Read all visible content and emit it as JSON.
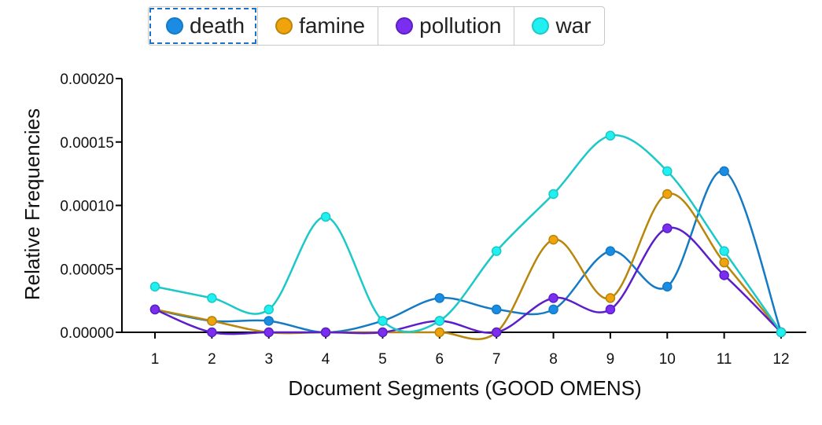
{
  "chart_data": {
    "type": "line",
    "xlabel": "Document Segments (GOOD OMENS)",
    "ylabel": "Relative Frequencies",
    "x": [
      1,
      2,
      3,
      4,
      5,
      6,
      7,
      8,
      9,
      10,
      11,
      12
    ],
    "ylim": [
      0,
      0.0002
    ],
    "yticks": [
      "0.00000",
      "0.00005",
      "0.00010",
      "0.00015",
      "0.00020"
    ],
    "legend_position": "top",
    "grid": false,
    "series": [
      {
        "name": "death",
        "color": "#1b8ce3",
        "stroke": "#147ac4",
        "values": [
          1.8e-05,
          9e-06,
          9e-06,
          0,
          9e-06,
          2.7e-05,
          1.8e-05,
          1.8e-05,
          6.4e-05,
          3.6e-05,
          0.000127,
          0
        ]
      },
      {
        "name": "famine",
        "color": "#f0a30a",
        "stroke": "#b8860b",
        "values": [
          1.8e-05,
          9e-06,
          0,
          0,
          0,
          0,
          0,
          7.3e-05,
          2.7e-05,
          0.000109,
          5.5e-05,
          0
        ]
      },
      {
        "name": "pollution",
        "color": "#7a2ff0",
        "stroke": "#5b1ec8",
        "values": [
          1.8e-05,
          0,
          0,
          0,
          0,
          9e-06,
          0,
          2.7e-05,
          1.8e-05,
          8.2e-05,
          4.5e-05,
          0
        ]
      },
      {
        "name": "war",
        "color": "#20f0f0",
        "stroke": "#1cc8c8",
        "values": [
          3.6e-05,
          2.7e-05,
          1.8e-05,
          9.1e-05,
          9e-06,
          9e-06,
          6.4e-05,
          0.000109,
          0.000155,
          0.000127,
          6.4e-05,
          0
        ]
      }
    ]
  }
}
